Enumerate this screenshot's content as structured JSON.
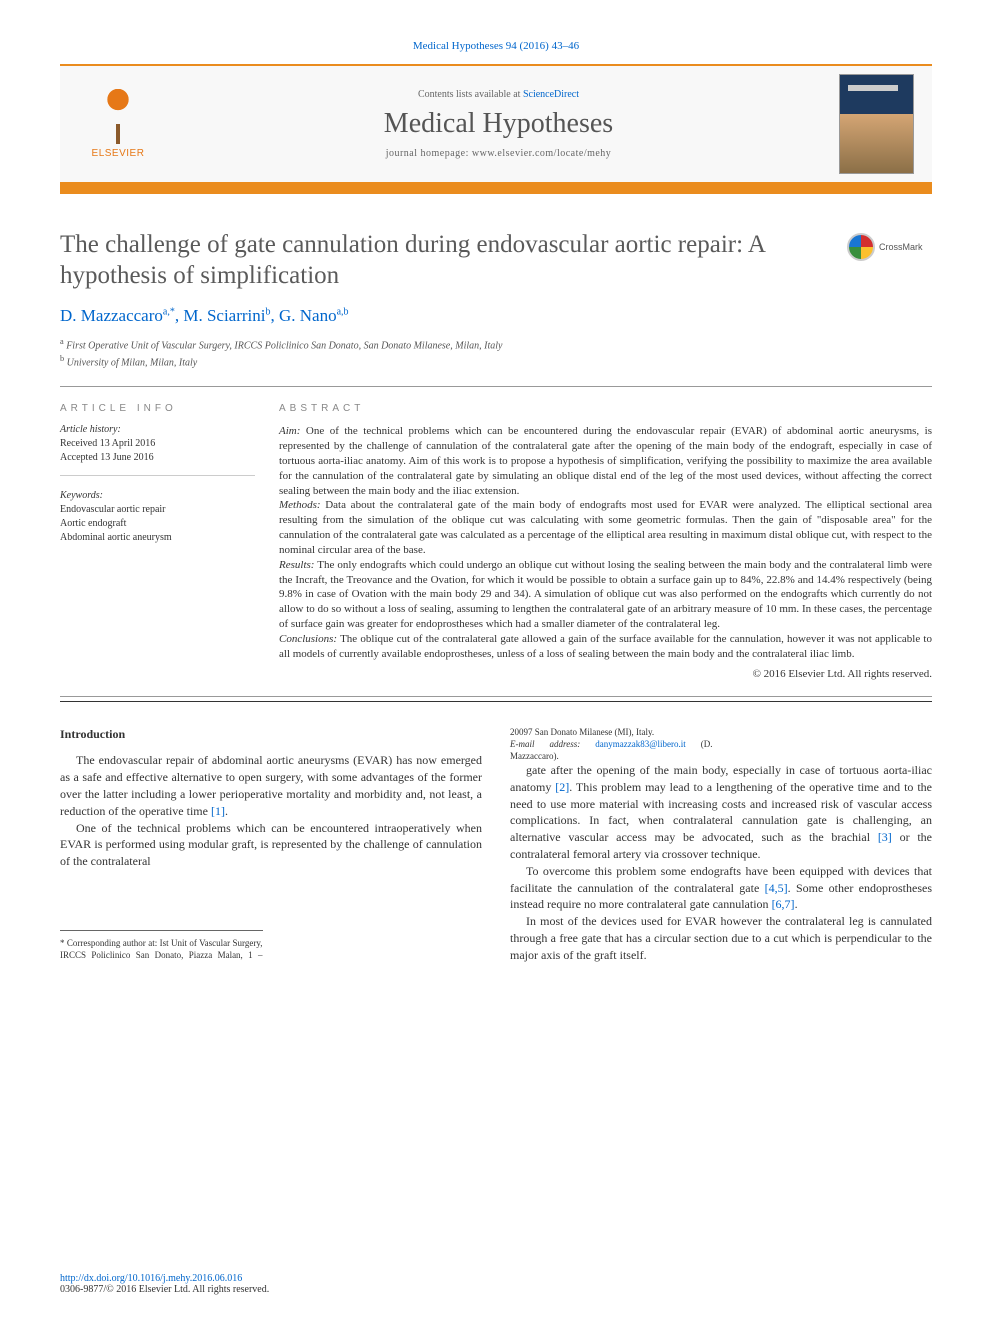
{
  "citation": "Medical Hypotheses 94 (2016) 43–46",
  "banner": {
    "contents_prefix": "Contents lists available at ",
    "contents_link": "ScienceDirect",
    "journal_title": "Medical Hypotheses",
    "homepage_prefix": "journal homepage: ",
    "homepage_url": "www.elsevier.com/locate/mehy",
    "elsevier_label": "ELSEVIER"
  },
  "title": "The challenge of gate cannulation during endovascular aortic repair: A hypothesis of simplification",
  "crossmark_label": "CrossMark",
  "authors_html": "D. Mazzaccaro|a,*|, M. Sciarrini|b|, G. Nano|a,b|",
  "authors": [
    {
      "name": "D. Mazzaccaro",
      "sup": "a,*"
    },
    {
      "name": "M. Sciarrini",
      "sup": "b"
    },
    {
      "name": "G. Nano",
      "sup": "a,b"
    }
  ],
  "affiliations": [
    {
      "sup": "a",
      "text": "First Operative Unit of Vascular Surgery, IRCCS Policlinico San Donato, San Donato Milanese, Milan, Italy"
    },
    {
      "sup": "b",
      "text": "University of Milan, Milan, Italy"
    }
  ],
  "article_info": {
    "heading": "article info",
    "history_label": "Article history:",
    "history": [
      "Received 13 April 2016",
      "Accepted 13 June 2016"
    ],
    "keywords_label": "Keywords:",
    "keywords": [
      "Endovascular aortic repair",
      "Aortic endograft",
      "Abdominal aortic aneurysm"
    ]
  },
  "abstract": {
    "heading": "abstract",
    "sections": [
      {
        "label": "Aim:",
        "text": "One of the technical problems which can be encountered during the endovascular repair (EVAR) of abdominal aortic aneurysms, is represented by the challenge of cannulation of the contralateral gate after the opening of the main body of the endograft, especially in case of tortuous aorta-iliac anatomy. Aim of this work is to propose a hypothesis of simplification, verifying the possibility to maximize the area available for the cannulation of the contralateral gate by simulating an oblique distal end of the leg of the most used devices, without affecting the correct sealing between the main body and the iliac extension."
      },
      {
        "label": "Methods:",
        "text": "Data about the contralateral gate of the main body of endografts most used for EVAR were analyzed. The elliptical sectional area resulting from the simulation of the oblique cut was calculating with some geometric formulas. Then the gain of \"disposable area\" for the cannulation of the contralateral gate was calculated as a percentage of the elliptical area resulting in maximum distal oblique cut, with respect to the nominal circular area of the base."
      },
      {
        "label": "Results:",
        "text": "The only endografts which could undergo an oblique cut without losing the sealing between the main body and the contralateral limb were the Incraft, the Treovance and the Ovation, for which it would be possible to obtain a surface gain up to 84%, 22.8% and 14.4% respectively (being 9.8% in case of Ovation with the main body 29 and 34). A simulation of oblique cut was also performed on the endografts which currently do not allow to do so without a loss of sealing, assuming to lengthen the contralateral gate of an arbitrary measure of 10 mm. In these cases, the percentage of surface gain was greater for endoprostheses which had a smaller diameter of the contralateral leg."
      },
      {
        "label": "Conclusions:",
        "text": "The oblique cut of the contralateral gate allowed a gain of the surface available for the cannulation, however it was not applicable to all models of currently available endoprostheses, unless of a loss of sealing between the main body and the contralateral iliac limb."
      }
    ],
    "copyright": "© 2016 Elsevier Ltd. All rights reserved."
  },
  "body": {
    "heading": "Introduction",
    "paragraphs": [
      "The endovascular repair of abdominal aortic aneurysms (EVAR) has now emerged as a safe and effective alternative to open surgery, with some advantages of the former over the latter including a lower perioperative mortality and morbidity and, not least, a reduction of the operative time [1].",
      "One of the technical problems which can be encountered intraoperatively when EVAR is performed using modular graft, is represented by the challenge of cannulation of the contralateral",
      "gate after the opening of the main body, especially in case of tortuous aorta-iliac anatomy [2]. This problem may lead to a lengthening of the operative time and to the need to use more material with increasing costs and increased risk of vascular access complications. In fact, when contralateral cannulation gate is challenging, an alternative vascular access may be advocated, such as the brachial [3] or the contralateral femoral artery via crossover technique.",
      "To overcome this problem some endografts have been equipped with devices that facilitate the cannulation of the contralateral gate [4,5]. Some other endoprostheses instead require no more contralateral gate cannulation [6,7].",
      "In most of the devices used for EVAR however the contralateral leg is cannulated through a free gate that has a circular section due to a cut which is perpendicular to the major axis of the graft itself."
    ]
  },
  "footnotes": {
    "corresponding": "* Corresponding author at: Ist Unit of Vascular Surgery, IRCCS Policlinico San Donato, Piazza Malan, 1 – 20097 San Donato Milanese (MI), Italy.",
    "email_label": "E-mail address:",
    "email": "danymazzak83@libero.it",
    "email_suffix": " (D. Mazzaccaro)."
  },
  "doi": {
    "url": "http://dx.doi.org/10.1016/j.mehy.2016.06.016",
    "issn_line": "0306-9877/© 2016 Elsevier Ltd. All rights reserved."
  },
  "colors": {
    "accent_orange": "#ea8c1e",
    "link_blue": "#0066cc",
    "text_gray": "#333333",
    "heading_gray": "#5a5a5a"
  }
}
